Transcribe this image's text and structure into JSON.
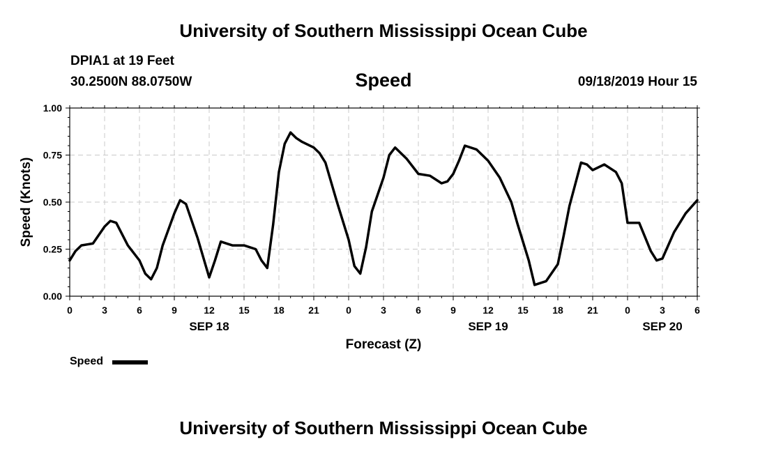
{
  "header": {
    "title": "University of Southern Mississippi Ocean Cube",
    "station": "DPIA1 at 19 Feet",
    "coordinates": "30.2500N 88.0750W",
    "variable": "Speed",
    "datetime": "09/18/2019 Hour 15"
  },
  "footer": {
    "title": "University of Southern Mississippi Ocean Cube"
  },
  "legend": {
    "label": "Speed"
  },
  "chart_data": {
    "type": "line",
    "title": "Speed",
    "xlabel": "Forecast (Z)",
    "ylabel": "Speed (Knots)",
    "ylim": [
      0,
      1
    ],
    "yticks": [
      "0.00",
      "0.25",
      "0.50",
      "0.75",
      "1.00"
    ],
    "xlim": [
      0,
      54
    ],
    "xtick_labels": [
      "0",
      "3",
      "6",
      "9",
      "12",
      "15",
      "18",
      "21",
      "0",
      "3",
      "6",
      "9",
      "12",
      "15",
      "18",
      "21",
      "0",
      "3",
      "6"
    ],
    "date_labels": [
      {
        "hour": 12,
        "text": "SEP 18"
      },
      {
        "hour": 36,
        "text": "SEP 19"
      },
      {
        "hour": 51,
        "text": "SEP 20"
      }
    ],
    "grid": true,
    "line_color": "#000000",
    "series": [
      {
        "name": "Speed",
        "x": [
          0,
          0.5,
          1,
          2,
          3,
          3.5,
          4,
          5,
          6,
          6.5,
          7,
          7.5,
          8,
          9,
          9.5,
          10,
          11,
          12,
          12.5,
          13,
          13.5,
          14,
          15,
          16,
          16.5,
          17,
          17.5,
          18,
          18.5,
          19,
          19.5,
          20,
          21,
          21.5,
          22,
          23,
          24,
          24.5,
          25,
          25.5,
          26,
          27,
          27.5,
          28,
          29,
          30,
          31,
          32,
          32.5,
          33,
          33.5,
          34,
          35,
          36,
          37,
          38,
          38.5,
          39,
          39.5,
          40,
          41,
          42,
          42.5,
          43,
          44,
          44.5,
          45,
          46,
          47,
          47.5,
          48,
          48.5,
          49,
          50,
          50.5,
          51,
          52,
          53,
          54
        ],
        "y": [
          0.19,
          0.24,
          0.27,
          0.28,
          0.37,
          0.4,
          0.39,
          0.27,
          0.19,
          0.12,
          0.09,
          0.15,
          0.27,
          0.44,
          0.51,
          0.49,
          0.31,
          0.1,
          0.19,
          0.29,
          0.28,
          0.27,
          0.27,
          0.25,
          0.19,
          0.15,
          0.38,
          0.66,
          0.81,
          0.87,
          0.84,
          0.82,
          0.79,
          0.76,
          0.71,
          0.5,
          0.3,
          0.16,
          0.12,
          0.26,
          0.45,
          0.63,
          0.75,
          0.79,
          0.73,
          0.65,
          0.64,
          0.6,
          0.61,
          0.65,
          0.72,
          0.8,
          0.78,
          0.72,
          0.63,
          0.5,
          0.39,
          0.29,
          0.19,
          0.06,
          0.08,
          0.17,
          0.32,
          0.48,
          0.71,
          0.7,
          0.67,
          0.7,
          0.66,
          0.6,
          0.39,
          0.39,
          0.39,
          0.24,
          0.19,
          0.2,
          0.34,
          0.44,
          0.51
        ]
      }
    ]
  }
}
